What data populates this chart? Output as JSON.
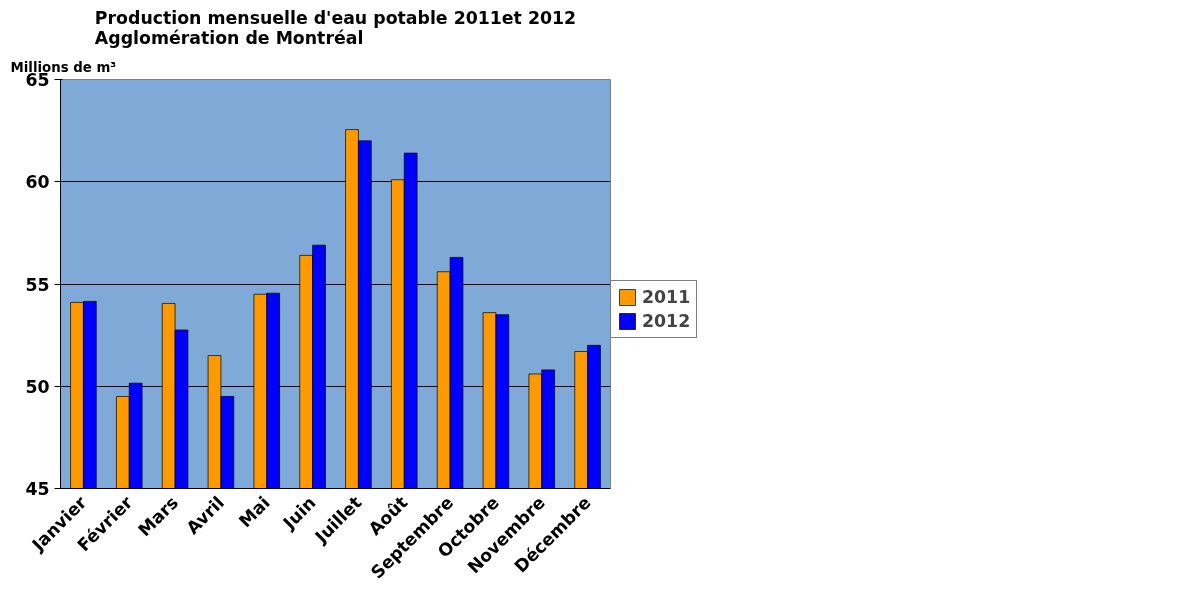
{
  "chart_data": {
    "type": "bar",
    "title": "Production mensuelle d'eau potable 2011et 2012\nAgglomération de Montréal",
    "ylabel": "Millions de m³",
    "categories": [
      "Janvier",
      "Février",
      "Mars",
      "Avril",
      "Mai",
      "Juin",
      "Juillet",
      "Août",
      "Septembre",
      "Octobre",
      "Novembre",
      "Décembre"
    ],
    "series": [
      {
        "name": "2011",
        "color": "#ff9900",
        "values": [
          54.1,
          49.5,
          54.05,
          51.5,
          54.5,
          56.4,
          62.55,
          60.1,
          55.6,
          53.6,
          50.6,
          51.7
        ]
      },
      {
        "name": "2012",
        "color": "#0000ff",
        "values": [
          54.15,
          50.15,
          52.75,
          49.5,
          54.55,
          56.9,
          62.0,
          61.4,
          56.3,
          53.5,
          50.8,
          52.0
        ]
      }
    ],
    "ylim": [
      45,
      65
    ],
    "yticks": [
      45,
      50,
      55,
      60,
      65
    ],
    "grid": "y",
    "legend": "right"
  }
}
